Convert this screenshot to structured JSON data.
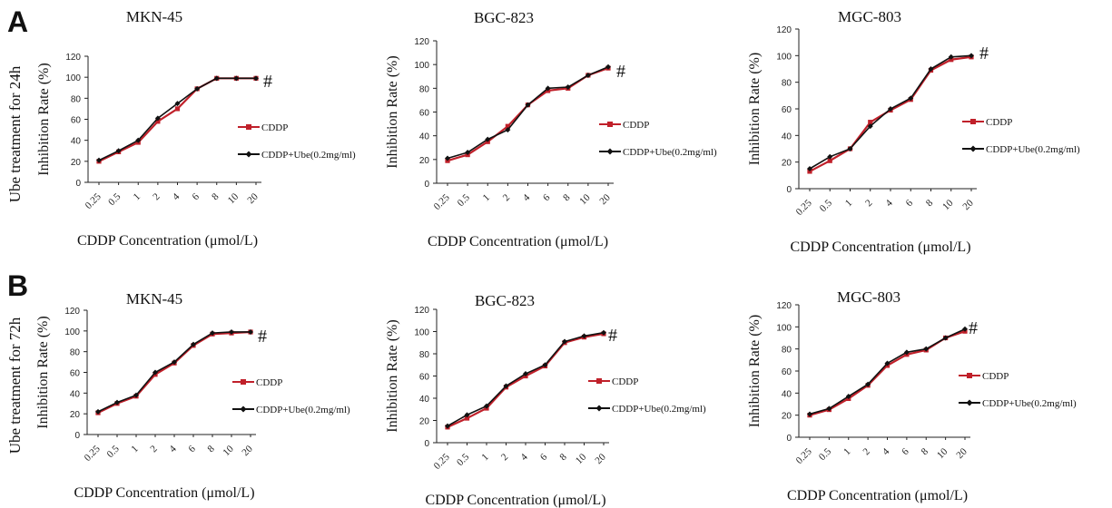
{
  "figure": {
    "panel_labels": [
      "A",
      "B"
    ],
    "row_labels": [
      "Ube treatment for 24h",
      "Ube treatment for 72h"
    ]
  },
  "style": {
    "cddp_color": "#c0202a",
    "combo_color": "#111111",
    "axis_color": "#222222"
  },
  "chart_data": [
    {
      "type": "line",
      "panel": "A",
      "title": "MKN-45",
      "categories": [
        "0.25",
        "0.5",
        "1",
        "2",
        "4",
        "6",
        "8",
        "10",
        "20"
      ],
      "ylabel": "Inhibition Rate (%)",
      "xlabel": "CDDP  Concentration (μmol/L)",
      "ylim": [
        0,
        120
      ],
      "yticks": [
        0,
        20,
        40,
        60,
        80,
        100,
        120
      ],
      "annotation": "#",
      "series": [
        {
          "name": "CDDP",
          "values": [
            20,
            29,
            38,
            58,
            70,
            89,
            99,
            99,
            99
          ]
        },
        {
          "name": "CDDP+Ube(0.2mg/ml)",
          "values": [
            21,
            30,
            40,
            61,
            75,
            89,
            99,
            99,
            99
          ]
        }
      ]
    },
    {
      "type": "line",
      "panel": "A",
      "title": "BGC-823",
      "categories": [
        "0.25",
        "0.5",
        "1",
        "2",
        "4",
        "6",
        "8",
        "10",
        "20"
      ],
      "ylabel": "Inhibition Rate (%)",
      "xlabel": "CDDP  Concentration (μmol/L)",
      "ylim": [
        0,
        120
      ],
      "yticks": [
        0,
        20,
        40,
        60,
        80,
        100,
        120
      ],
      "annotation": "#",
      "series": [
        {
          "name": "CDDP",
          "values": [
            19,
            24,
            35,
            48,
            66,
            78,
            80,
            91,
            97
          ]
        },
        {
          "name": "CDDP+Ube(0.2mg/ml)",
          "values": [
            21,
            26,
            37,
            45,
            66,
            80,
            81,
            91,
            98
          ]
        }
      ]
    },
    {
      "type": "line",
      "panel": "A",
      "title": "MGC-803",
      "categories": [
        "0.25",
        "0.5",
        "1",
        "2",
        "4",
        "6",
        "8",
        "10",
        "20"
      ],
      "ylabel": "Inhibition Rate (%)",
      "xlabel": "CDDP  Concentration (μmol/L)",
      "ylim": [
        0,
        120
      ],
      "yticks": [
        0,
        20,
        40,
        60,
        80,
        100,
        120
      ],
      "annotation": "#",
      "series": [
        {
          "name": "CDDP",
          "values": [
            13,
            21,
            30,
            50,
            59,
            67,
            89,
            97,
            99
          ]
        },
        {
          "name": "CDDP+Ube(0.2mg/ml)",
          "values": [
            15,
            24,
            30,
            47,
            60,
            68,
            90,
            99,
            100
          ]
        }
      ]
    },
    {
      "type": "line",
      "panel": "B",
      "title": "MKN-45",
      "categories": [
        "0.25",
        "0.5",
        "1",
        "2",
        "4",
        "6",
        "8",
        "10",
        "20"
      ],
      "ylabel": "Inhibition Rate (%)",
      "xlabel": "CDDP  Concentration (μmol/L)",
      "ylim": [
        0,
        120
      ],
      "yticks": [
        0,
        20,
        40,
        60,
        80,
        100,
        120
      ],
      "annotation": "#",
      "series": [
        {
          "name": "CDDP",
          "values": [
            21,
            30,
            37,
            58,
            69,
            86,
            97,
            98,
            99
          ]
        },
        {
          "name": "CDDP+Ube(0.2mg/ml)",
          "values": [
            22,
            31,
            38,
            60,
            70,
            87,
            98,
            99,
            99
          ]
        }
      ]
    },
    {
      "type": "line",
      "panel": "B",
      "title": "BGC-823",
      "categories": [
        "0.25",
        "0.5",
        "1",
        "2",
        "4",
        "6",
        "8",
        "10",
        "20"
      ],
      "ylabel": "Inhibition Rate (%)",
      "xlabel": "CDDP  Concentration (μmol/L)",
      "ylim": [
        0,
        120
      ],
      "yticks": [
        0,
        20,
        40,
        60,
        80,
        100,
        120
      ],
      "annotation": "#",
      "series": [
        {
          "name": "CDDP",
          "values": [
            14,
            22,
            31,
            50,
            60,
            69,
            90,
            95,
            98
          ]
        },
        {
          "name": "CDDP+Ube(0.2mg/ml)",
          "values": [
            15,
            25,
            33,
            51,
            62,
            70,
            91,
            96,
            99
          ]
        }
      ]
    },
    {
      "type": "line",
      "panel": "B",
      "title": "MGC-803",
      "categories": [
        "0.25",
        "0.5",
        "1",
        "2",
        "4",
        "6",
        "8",
        "10",
        "20"
      ],
      "ylabel": "Inhibition Rate (%)",
      "xlabel": "CDDP  Concentration (μmol/L)",
      "ylim": [
        0,
        120
      ],
      "yticks": [
        0,
        20,
        40,
        60,
        80,
        100,
        120
      ],
      "annotation": "#",
      "series": [
        {
          "name": "CDDP",
          "values": [
            20,
            25,
            35,
            47,
            65,
            75,
            79,
            90,
            96
          ]
        },
        {
          "name": "CDDP+Ube(0.2mg/ml)",
          "values": [
            21,
            26,
            37,
            48,
            67,
            77,
            80,
            90,
            98
          ]
        }
      ]
    }
  ]
}
